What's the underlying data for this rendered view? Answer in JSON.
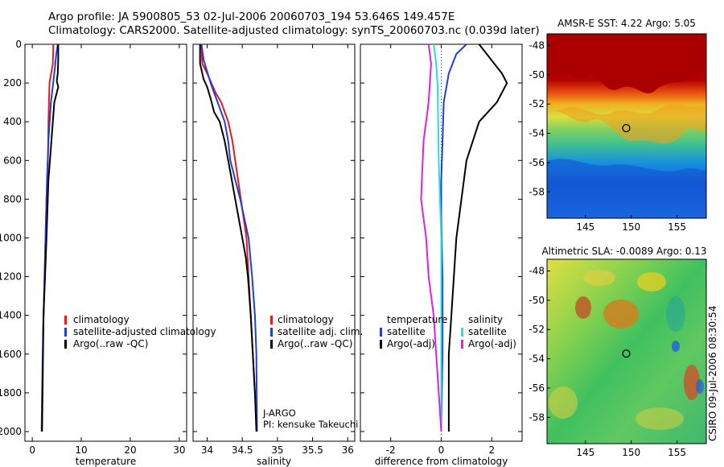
{
  "figure": {
    "title_line1": "Argo profile: JA 5900805_53 02-Jul-2006 20060703_194 53.646S 149.457E",
    "title_line2": "Climatology: CARS2000. Satellite-adjusted climatology: synTS_20060703.nc (0.039d later)",
    "credit": "CSIRO 09-Jul-2006 08:30:54"
  },
  "colors": {
    "climatology": "#e41a1c",
    "satellite": "#1f3fd8",
    "argo": "#000000",
    "satellite_diff": "#26e0e0",
    "argo_diff_sal": "#e020e0"
  },
  "chart_data": [
    {
      "id": "temperature",
      "type": "line",
      "xlabel": "temperature",
      "ylabel": "",
      "xlim": [
        -1.5,
        31.5
      ],
      "ylim": [
        2050,
        0
      ],
      "xticks": [
        0,
        10,
        20,
        30
      ],
      "yticks": [
        0,
        200,
        400,
        600,
        800,
        1000,
        1200,
        1400,
        1600,
        1800,
        2000
      ],
      "legend": {
        "position": "middle-left",
        "entries": [
          "climatology",
          "satellite-adjusted climatology",
          "Argo(..raw -QC)"
        ]
      },
      "series": [
        {
          "name": "climatology",
          "color_key": "climatology",
          "x": [
            4.3,
            4.2,
            3.5,
            3.3,
            3.2,
            2.9,
            2.7,
            2.5,
            2.3,
            2.2
          ],
          "y": [
            0,
            100,
            200,
            400,
            600,
            800,
            1000,
            1200,
            1400,
            1500
          ]
        },
        {
          "name": "satellite-adjusted climatology",
          "color_key": "satellite",
          "x": [
            5.2,
            4.9,
            4.5,
            3.8,
            3.3,
            3.0,
            2.8,
            2.6,
            2.4,
            2.2,
            2.0,
            1.9
          ],
          "y": [
            0,
            50,
            150,
            300,
            500,
            700,
            900,
            1100,
            1300,
            1500,
            1800,
            2000
          ]
        },
        {
          "name": "Argo(..raw -QC)",
          "color_key": "argo",
          "x": [
            5.3,
            5.3,
            5.2,
            5.0,
            5.3,
            4.9,
            4.5,
            4.2,
            3.9,
            3.6,
            3.3,
            3.1,
            2.9,
            2.6,
            2.3,
            2.2,
            2.1,
            2.0
          ],
          "y": [
            0,
            80,
            150,
            190,
            220,
            260,
            300,
            400,
            500,
            600,
            700,
            850,
            1000,
            1200,
            1400,
            1600,
            1800,
            2000
          ]
        }
      ]
    },
    {
      "id": "salinity",
      "type": "line",
      "xlabel": "salinity",
      "ylabel": "",
      "xlim": [
        33.8,
        36.1
      ],
      "ylim": [
        2050,
        0
      ],
      "xticks": [
        34,
        34.5,
        35,
        35.5,
        36
      ],
      "legend": {
        "position": "middle-center",
        "entries": [
          "climatology",
          "satellite adj. clim.",
          "Argo(..raw -QC)"
        ]
      },
      "annotations": [
        "J-ARGO",
        "PI: kensuke Takeuchi"
      ],
      "series": [
        {
          "name": "climatology",
          "color_key": "climatology",
          "x": [
            33.92,
            33.93,
            34.0,
            34.12,
            34.2,
            34.3,
            34.36,
            34.4,
            34.44,
            34.48,
            34.52,
            34.56,
            34.59,
            34.62,
            34.65,
            34.68
          ],
          "y": [
            0,
            100,
            150,
            250,
            300,
            400,
            500,
            600,
            700,
            800,
            900,
            1000,
            1200,
            1400,
            1600,
            1800
          ]
        },
        {
          "name": "satellite adj. clim.",
          "color_key": "satellite",
          "x": [
            33.92,
            33.95,
            34.05,
            34.15,
            34.25,
            34.3,
            34.33,
            34.4,
            34.47,
            34.53,
            34.59,
            34.64,
            34.68,
            34.7,
            34.71
          ],
          "y": [
            0,
            80,
            200,
            300,
            400,
            500,
            600,
            700,
            800,
            900,
            1000,
            1200,
            1400,
            1600,
            2000
          ]
        },
        {
          "name": "Argo(..raw -QC)",
          "color_key": "argo",
          "x": [
            33.9,
            33.9,
            33.95,
            34.0,
            34.05,
            34.1,
            34.18,
            34.25,
            34.3,
            34.35,
            34.4,
            34.45,
            34.5,
            34.55,
            34.58,
            34.62,
            34.65,
            34.68,
            34.7
          ],
          "y": [
            0,
            100,
            180,
            220,
            280,
            350,
            400,
            500,
            600,
            700,
            800,
            900,
            1000,
            1100,
            1200,
            1400,
            1600,
            1800,
            2000
          ]
        }
      ]
    },
    {
      "id": "difference",
      "type": "line",
      "xlabel": "difference from climatology",
      "ylabel": "",
      "xlim": [
        -3.2,
        3.2
      ],
      "ylim": [
        2050,
        0
      ],
      "xticks": [
        -2,
        0,
        2
      ],
      "legend": {
        "position": "middle",
        "columns": [
          {
            "header": "temperature",
            "entries": [
              "satellite",
              "Argo(-adj)"
            ]
          },
          {
            "header": "salinity",
            "entries": [
              "satellite",
              "Argo(-adj)"
            ]
          }
        ]
      },
      "series": [
        {
          "name": "temperature satellite",
          "color_key": "satellite",
          "x": [
            1.0,
            0.6,
            0.3,
            0.1,
            0.05,
            0.0,
            0.0,
            0.05,
            0.05,
            0.0
          ],
          "y": [
            0,
            50,
            150,
            300,
            500,
            700,
            900,
            1200,
            1600,
            2000
          ]
        },
        {
          "name": "temperature Argo(-adj)",
          "color_key": "argo",
          "x": [
            1.5,
            1.8,
            2.4,
            2.6,
            2.2,
            1.5,
            1.0,
            0.8,
            0.6,
            0.5,
            0.4,
            0.3,
            0.3,
            0.3
          ],
          "y": [
            0,
            50,
            150,
            200,
            300,
            400,
            600,
            800,
            1000,
            1200,
            1400,
            1600,
            1800,
            2000
          ]
        },
        {
          "name": "salinity satellite",
          "color_key": "satellite_diff",
          "x": [
            -0.3,
            -0.2,
            -0.15,
            -0.12,
            -0.1,
            -0.05,
            0.0,
            0.0,
            0.0
          ],
          "y": [
            0,
            100,
            200,
            400,
            600,
            800,
            1000,
            1500,
            2000
          ]
        },
        {
          "name": "salinity Argo(-adj)",
          "color_key": "argo_diff_sal",
          "x": [
            -0.5,
            -0.4,
            -0.5,
            -0.7,
            -0.8,
            -0.6,
            -0.5,
            -0.3,
            -0.2,
            -0.1,
            0.0
          ],
          "y": [
            0,
            100,
            300,
            500,
            800,
            1000,
            1200,
            1400,
            1600,
            1800,
            2000
          ]
        }
      ]
    },
    {
      "id": "sst_map",
      "type": "heatmap",
      "title": "AMSR-E SST: 4.22 Argo: 5.05",
      "xlim": [
        140.8,
        158.2
      ],
      "ylim": [
        -59.8,
        -47.2
      ],
      "xticks": [
        145,
        150,
        155
      ],
      "yticks": [
        -48,
        -50,
        -52,
        -54,
        -56,
        -58
      ],
      "marker": {
        "lon": 149.457,
        "lat": -53.646
      }
    },
    {
      "id": "sla_map",
      "type": "heatmap",
      "title": "Altimetric SLA: -0.0089 Argo: 0.13",
      "xlim": [
        140.8,
        158.2
      ],
      "ylim": [
        -59.8,
        -47.2
      ],
      "xticks": [
        145,
        150,
        155
      ],
      "yticks": [
        -48,
        -50,
        -52,
        -54,
        -56,
        -58
      ],
      "marker": {
        "lon": 149.457,
        "lat": -53.646
      }
    }
  ]
}
